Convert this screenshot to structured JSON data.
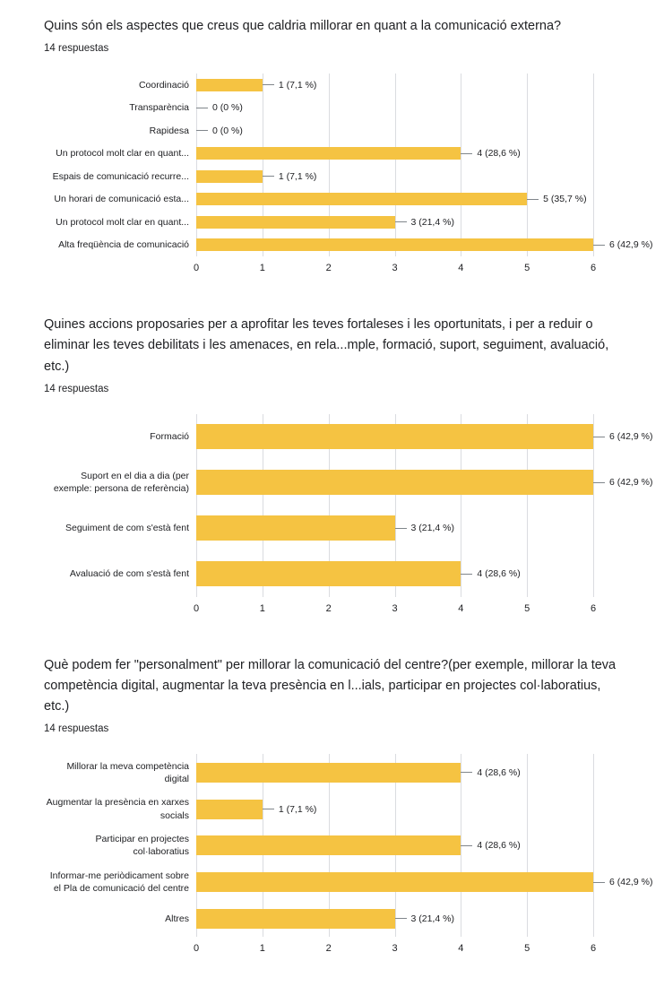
{
  "page": {
    "background": "#ffffff"
  },
  "chart_data": [
    {
      "type": "bar",
      "orientation": "horizontal",
      "title": "Quins són els aspectes que creus que caldria millorar en quant a la comunicació externa?",
      "subtitle": "14 respuestas",
      "categories": [
        "Coordinació",
        "Transparència",
        "Rapidesa",
        "Un protocol molt clar en quant...",
        "Espais de comunicació recurre...",
        "Un horari de comunicació esta...",
        "Un protocol molt clar en quant...",
        "Alta freqüència de comunicació"
      ],
      "values": [
        1,
        0,
        0,
        4,
        1,
        5,
        3,
        6
      ],
      "value_labels": [
        "1 (7,1 %)",
        "0 (0 %)",
        "0 (0 %)",
        "4 (28,6 %)",
        "1 (7,1 %)",
        "5 (35,7 %)",
        "3 (21,4 %)",
        "6 (42,9 %)"
      ],
      "xlim": [
        0,
        6
      ],
      "x_ticks": [
        0,
        1,
        2,
        3,
        4,
        5,
        6
      ],
      "bar_color": "#F5C342",
      "grid": true,
      "legend": "none",
      "xlabel": "",
      "ylabel": ""
    },
    {
      "type": "bar",
      "orientation": "horizontal",
      "title": "Quines accions proposaries per a aprofitar les teves fortaleses i les oportunitats, i per a reduir o eliminar les teves debilitats i les amenaces, en rela...mple, formació, suport, seguiment, avaluació, etc.)",
      "subtitle": "14 respuestas",
      "categories": [
        "Formació",
        "Suport en el dia a dia (per exemple: persona de referència)",
        "Seguiment de com s'està fent",
        "Avaluació de com s'està fent"
      ],
      "values": [
        6,
        6,
        3,
        4
      ],
      "value_labels": [
        "6 (42,9 %)",
        "6 (42,9 %)",
        "3 (21,4 %)",
        "4 (28,6 %)"
      ],
      "xlim": [
        0,
        6
      ],
      "x_ticks": [
        0,
        1,
        2,
        3,
        4,
        5,
        6
      ],
      "bar_color": "#F5C342",
      "grid": true,
      "legend": "none",
      "xlabel": "",
      "ylabel": ""
    },
    {
      "type": "bar",
      "orientation": "horizontal",
      "title": "Què podem fer \"personalment\" per millorar la comunicació del centre?(per exemple, millorar la teva competència digital, augmentar la teva presència en l...ials, participar en projectes col·laboratius, etc.)",
      "subtitle": "14 respuestas",
      "categories": [
        "Millorar la meva competència digital",
        "Augmentar la presència en xarxes socials",
        "Participar en projectes col·laboratius",
        "Informar-me periòdicament sobre el Pla de comunicació del centre",
        "Altres"
      ],
      "values": [
        4,
        1,
        4,
        6,
        3
      ],
      "value_labels": [
        "4 (28,6 %)",
        "1 (7,1 %)",
        "4 (28,6 %)",
        "6 (42,9 %)",
        "3 (21,4 %)"
      ],
      "xlim": [
        0,
        6
      ],
      "x_ticks": [
        0,
        1,
        2,
        3,
        4,
        5,
        6
      ],
      "bar_color": "#F5C342",
      "grid": true,
      "legend": "none",
      "xlabel": "",
      "ylabel": ""
    }
  ]
}
